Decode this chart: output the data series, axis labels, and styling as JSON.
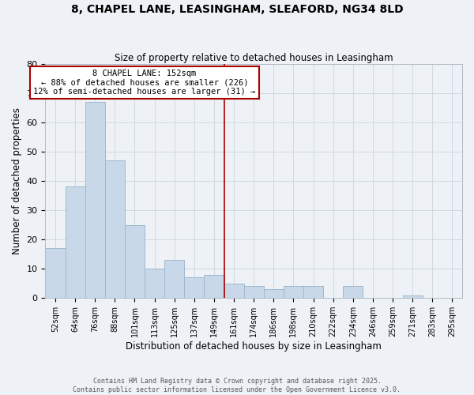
{
  "title": "8, CHAPEL LANE, LEASINGHAM, SLEAFORD, NG34 8LD",
  "subtitle": "Size of property relative to detached houses in Leasingham",
  "xlabel": "Distribution of detached houses by size in Leasingham",
  "ylabel": "Number of detached properties",
  "bar_values": [
    17,
    38,
    67,
    47,
    25,
    10,
    13,
    7,
    8,
    5,
    4,
    3,
    4,
    4,
    0,
    4,
    0,
    0,
    1,
    0,
    0
  ],
  "bar_color": "#c8d8e8",
  "bar_edge_color": "#a0b8cc",
  "vline_x": 8.5,
  "vline_color": "#aa0000",
  "ylim": [
    0,
    80
  ],
  "yticks": [
    0,
    10,
    20,
    30,
    40,
    50,
    60,
    70,
    80
  ],
  "annotation_title": "8 CHAPEL LANE: 152sqm",
  "annotation_line1": "← 88% of detached houses are smaller (226)",
  "annotation_line2": "12% of semi-detached houses are larger (31) →",
  "annotation_box_color": "#ffffff",
  "annotation_box_edge": "#aa0000",
  "grid_color": "#d0d8e0",
  "bg_color": "#eef2f7",
  "footer_line1": "Contains HM Land Registry data © Crown copyright and database right 2025.",
  "footer_line2": "Contains public sector information licensed under the Open Government Licence v3.0.",
  "all_labels": [
    "52sqm",
    "64sqm",
    "76sqm",
    "88sqm",
    "101sqm",
    "113sqm",
    "125sqm",
    "137sqm",
    "149sqm",
    "161sqm",
    "174sqm",
    "186sqm",
    "198sqm",
    "210sqm",
    "222sqm",
    "234sqm",
    "246sqm",
    "259sqm",
    "271sqm",
    "283sqm",
    "295sqm"
  ]
}
